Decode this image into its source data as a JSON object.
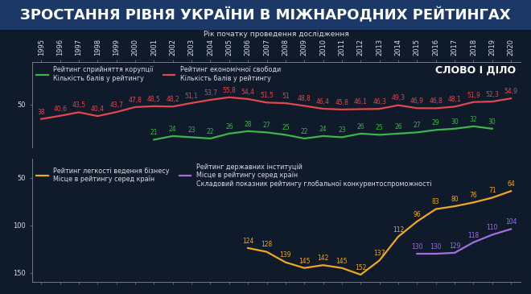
{
  "title": "ЗРОСТАННЯ РІВНЯ УКРАЇНИ В МІЖНАРОДНИХ РЕЙТИНГАХ",
  "logo": "СЛОВО І ДІЛО",
  "chart_data": [
    {
      "type": "line",
      "xlabel": "Рік початку проведення дослідження",
      "xlim": [
        1994.5,
        2020.5
      ],
      "xticks": [
        1995,
        1996,
        1997,
        1998,
        1999,
        2000,
        2001,
        2002,
        2003,
        2004,
        2005,
        2006,
        2007,
        2008,
        2009,
        2010,
        2011,
        2012,
        2013,
        2014,
        2015,
        2016,
        2017,
        2018,
        2019,
        2020
      ],
      "ylim": [
        15,
        85
      ],
      "yticks": [
        50
      ],
      "data_labels": true,
      "legend": "upper left",
      "series": [
        {
          "name": "Рейтинг сприйняття корупції\nКількість балів у рейтингу",
          "color": "#3cb54a",
          "x": [
            2001,
            2002,
            2003,
            2004,
            2005,
            2006,
            2007,
            2008,
            2009,
            2010,
            2011,
            2012,
            2013,
            2014,
            2015,
            2016,
            2017,
            2018,
            2019
          ],
          "values": [
            21,
            24,
            23,
            22,
            26,
            28,
            27,
            25,
            22,
            24,
            23,
            26,
            25,
            26,
            27,
            29,
            30,
            32,
            30
          ]
        },
        {
          "name": "Рейтинг економічної свободи\nКількість балів у рейтингу",
          "color": "#e2474b",
          "x": [
            1995,
            1996,
            1997,
            1998,
            1999,
            2000,
            2001,
            2002,
            2003,
            2004,
            2005,
            2006,
            2007,
            2008,
            2009,
            2010,
            2011,
            2012,
            2013,
            2014,
            2015,
            2016,
            2017,
            2018,
            2019,
            2020
          ],
          "values": [
            38,
            40.6,
            43.5,
            40.4,
            43.7,
            47.8,
            48.5,
            48.2,
            51.1,
            53.7,
            55.8,
            54.4,
            51.5,
            51,
            48.8,
            46.4,
            45.8,
            46.1,
            46.3,
            49.3,
            46.9,
            46.8,
            48.1,
            51.9,
            52.3,
            54.9
          ],
          "value_labels": [
            "38",
            "40,6",
            "43,5",
            "40,4",
            "43,7",
            "47,8",
            "48,5",
            "48,2",
            "51,1",
            "53,7",
            "55,8",
            "54,4",
            "51,5",
            "51",
            "48,8",
            "46,4",
            "45,8",
            "46,1",
            "46,3",
            "49,3",
            "46,9",
            "46,8",
            "48,1",
            "51,9",
            "52,3",
            "54,9"
          ]
        }
      ]
    },
    {
      "type": "line",
      "xlim": [
        1994.5,
        2020.5
      ],
      "xticks": [
        1995,
        1996,
        1997,
        1998,
        1999,
        2000,
        2001,
        2002,
        2003,
        2004,
        2005,
        2006,
        2007,
        2008,
        2009,
        2010,
        2011,
        2012,
        2013,
        2014,
        2015,
        2016,
        2017,
        2018,
        2019,
        2020
      ],
      "tick_labels": "y",
      "ylim": [
        160,
        30
      ],
      "yticks": [
        50,
        100,
        150
      ],
      "data_labels": true,
      "legend": "upper left",
      "series": [
        {
          "name": "Рейтинг легкості ведення бізнесу\nМісце в рейтингу серед країн",
          "color": "#f0a81e",
          "x": [
            2006,
            2007,
            2008,
            2009,
            2010,
            2011,
            2012,
            2013,
            2014,
            2015,
            2016,
            2017,
            2018,
            2019,
            2020
          ],
          "values": [
            124,
            128,
            139,
            145,
            142,
            145,
            152,
            137,
            112,
            96,
            83,
            80,
            76,
            71,
            64
          ]
        },
        {
          "name": "Рейтинг державних інституцій\nМісце в рейтингу серед країн\nСкладовий показник рейтингу глобальної конкурентоспроможності",
          "color": "#a070e0",
          "x": [
            2015,
            2016,
            2017,
            2018,
            2019,
            2020
          ],
          "values": [
            130,
            130,
            129,
            118,
            110,
            104
          ]
        }
      ]
    }
  ]
}
